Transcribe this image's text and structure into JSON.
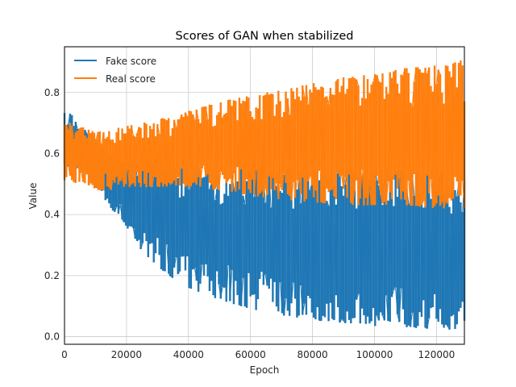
{
  "chart_data": {
    "type": "line",
    "title": "Scores of GAN when stabilized",
    "xlabel": "Epoch",
    "ylabel": "Value",
    "xlim": [
      0,
      129000
    ],
    "ylim": [
      -0.025,
      0.95
    ],
    "xticks": [
      0,
      20000,
      40000,
      60000,
      80000,
      100000,
      120000
    ],
    "yticks": [
      0.0,
      0.2,
      0.4,
      0.6,
      0.8
    ],
    "grid": true,
    "legend_position": "top-left",
    "series": [
      {
        "name": "Fake score",
        "color": "#1f77b4",
        "x": [
          0,
          5000,
          10000,
          15000,
          20000,
          25000,
          30000,
          35000,
          40000,
          50000,
          60000,
          70000,
          80000,
          90000,
          100000,
          110000,
          120000,
          129000
        ],
        "upper": [
          0.75,
          0.7,
          0.64,
          0.6,
          0.58,
          0.58,
          0.57,
          0.56,
          0.56,
          0.55,
          0.55,
          0.55,
          0.55,
          0.55,
          0.55,
          0.55,
          0.55,
          0.52
        ],
        "lower": [
          0.56,
          0.55,
          0.49,
          0.42,
          0.36,
          0.28,
          0.23,
          0.19,
          0.16,
          0.12,
          0.09,
          0.07,
          0.055,
          0.045,
          0.035,
          0.03,
          0.025,
          0.02
        ]
      },
      {
        "name": "Real score",
        "color": "#ff7f0e",
        "x": [
          0,
          5000,
          10000,
          15000,
          20000,
          30000,
          40000,
          50000,
          60000,
          70000,
          80000,
          90000,
          100000,
          110000,
          120000,
          129000
        ],
        "upper": [
          0.71,
          0.69,
          0.67,
          0.68,
          0.69,
          0.71,
          0.74,
          0.77,
          0.79,
          0.81,
          0.83,
          0.85,
          0.86,
          0.88,
          0.89,
          0.91
        ],
        "lower": [
          0.51,
          0.5,
          0.48,
          0.48,
          0.49,
          0.49,
          0.49,
          0.48,
          0.46,
          0.45,
          0.44,
          0.43,
          0.43,
          0.43,
          0.42,
          0.41
        ]
      }
    ]
  }
}
